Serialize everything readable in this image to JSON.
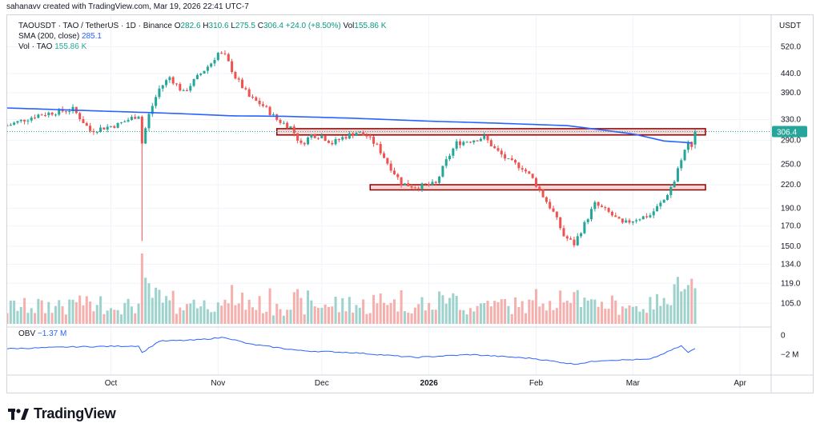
{
  "header": {
    "credit": "sahanavv created with TradingView.com, Mar 19, 2026 22:41 UTC-7"
  },
  "legend": {
    "symbol": "TAOUSDT · TAO / TetherUS · 1D · Binance",
    "o_label": "O",
    "o": "282.6",
    "h_label": "H",
    "h": "310.6",
    "l_label": "L",
    "l": "275.5",
    "c_label": "C",
    "c": "306.4",
    "change": "+24.0 (+8.50%)",
    "vol_label": "Vol",
    "vol": "155.86 K",
    "sma_label": "SMA (200, close)",
    "sma_value": "285.1",
    "vol_tao_label": "Vol · TAO",
    "vol_tao_value": "155.86 K",
    "obv_label": "OBV",
    "obv_value": "−1.37 M"
  },
  "price_axis": {
    "currency": "USDT",
    "ticks": [
      "520.0",
      "440.0",
      "390.0",
      "330.0",
      "290.0",
      "250.0",
      "220.0",
      "190.0",
      "170.0",
      "150.0",
      "134.0",
      "119.0",
      "105.0"
    ],
    "last_price": "306.4"
  },
  "obv_axis": {
    "ticks": [
      "0",
      "−2 M"
    ]
  },
  "time_axis": {
    "ticks": [
      "Oct",
      "Nov",
      "Dec",
      "2026",
      "Feb",
      "Mar",
      "Apr"
    ]
  },
  "colors": {
    "up": "#26a69a",
    "down": "#ef5350",
    "sma": "#2962ff",
    "obv": "#2962ff",
    "zone_border": "#8b0000",
    "zone_fill": "#f6d5d5"
  },
  "brand": {
    "name": "TradingView"
  },
  "chart_data": {
    "type": "candlestick",
    "symbol": "TAOUSDT",
    "interval": "1D",
    "scale": "log",
    "resistance_zone": [
      300,
      312
    ],
    "support_zone": [
      213,
      220
    ],
    "sma200_path": [
      [
        "2025-09-01",
        355
      ],
      [
        "2025-09-25",
        349
      ],
      [
        "2025-10-20",
        343
      ],
      [
        "2025-11-05",
        338
      ],
      [
        "2025-11-20",
        337
      ],
      [
        "2025-12-10",
        333
      ],
      [
        "2026-01-01",
        327
      ],
      [
        "2026-01-20",
        323
      ],
      [
        "2026-02-10",
        318
      ],
      [
        "2026-03-01",
        302
      ],
      [
        "2026-03-10",
        289
      ],
      [
        "2026-03-19",
        285
      ]
    ],
    "price_path": [
      [
        "2025-09-01",
        318
      ],
      [
        "2025-09-10",
        340
      ],
      [
        "2025-09-20",
        352
      ],
      [
        "2025-09-25",
        308
      ],
      [
        "2025-10-03",
        320
      ],
      [
        "2025-10-09",
        340
      ],
      [
        "2025-10-10",
        285
      ],
      [
        "2025-10-12",
        340
      ],
      [
        "2025-10-15",
        400
      ],
      [
        "2025-10-18",
        430
      ],
      [
        "2025-10-22",
        390
      ],
      [
        "2025-10-25",
        420
      ],
      [
        "2025-10-30",
        470
      ],
      [
        "2025-11-01",
        500
      ],
      [
        "2025-11-03",
        490
      ],
      [
        "2025-11-06",
        430
      ],
      [
        "2025-11-10",
        380
      ],
      [
        "2025-11-14",
        360
      ],
      [
        "2025-11-18",
        330
      ],
      [
        "2025-11-22",
        315
      ],
      [
        "2025-11-25",
        282
      ],
      [
        "2025-11-28",
        300
      ],
      [
        "2025-12-01",
        298
      ],
      [
        "2025-12-04",
        285
      ],
      [
        "2025-12-07",
        295
      ],
      [
        "2025-12-11",
        305
      ],
      [
        "2025-12-14",
        298
      ],
      [
        "2025-12-17",
        280
      ],
      [
        "2025-12-20",
        252
      ],
      [
        "2025-12-24",
        222
      ],
      [
        "2025-12-28",
        217
      ],
      [
        "2026-01-03",
        221
      ],
      [
        "2026-01-06",
        255
      ],
      [
        "2026-01-09",
        285
      ],
      [
        "2026-01-13",
        290
      ],
      [
        "2026-01-17",
        296
      ],
      [
        "2026-01-20",
        275
      ],
      [
        "2026-01-24",
        255
      ],
      [
        "2026-01-28",
        245
      ],
      [
        "2026-01-31",
        228
      ],
      [
        "2026-02-03",
        205
      ],
      [
        "2026-02-06",
        185
      ],
      [
        "2026-02-09",
        160
      ],
      [
        "2026-02-12",
        152
      ],
      [
        "2026-02-15",
        172
      ],
      [
        "2026-02-18",
        195
      ],
      [
        "2026-02-22",
        185
      ],
      [
        "2026-02-26",
        172
      ],
      [
        "2026-03-02",
        178
      ],
      [
        "2026-03-06",
        182
      ],
      [
        "2026-03-10",
        200
      ],
      [
        "2026-03-13",
        225
      ],
      [
        "2026-03-15",
        260
      ],
      [
        "2026-03-17",
        285
      ],
      [
        "2026-03-18",
        282.6
      ],
      [
        "2026-03-19",
        306.4
      ]
    ],
    "obv_path": [
      [
        "2025-09-01",
        -1.4
      ],
      [
        "2025-09-20",
        -1.2
      ],
      [
        "2025-10-09",
        -1.1
      ],
      [
        "2025-10-10",
        -1.8
      ],
      [
        "2025-10-15",
        -0.6
      ],
      [
        "2025-10-25",
        -0.5
      ],
      [
        "2025-11-03",
        -0.2
      ],
      [
        "2025-11-10",
        -0.9
      ],
      [
        "2025-11-25",
        -1.6
      ],
      [
        "2025-12-10",
        -1.8
      ],
      [
        "2025-12-28",
        -2.3
      ],
      [
        "2026-01-13",
        -2.0
      ],
      [
        "2026-01-31",
        -2.4
      ],
      [
        "2026-02-12",
        -3.0
      ],
      [
        "2026-02-20",
        -2.6
      ],
      [
        "2026-03-06",
        -2.5
      ],
      [
        "2026-03-15",
        -1.1
      ],
      [
        "2026-03-17",
        -1.8
      ],
      [
        "2026-03-19",
        -1.37
      ]
    ],
    "volume_units": "K TAO",
    "ylim": [
      135,
      545
    ]
  }
}
